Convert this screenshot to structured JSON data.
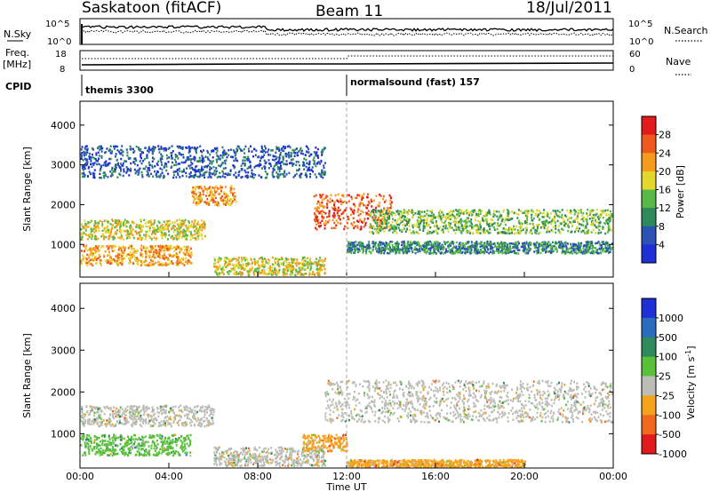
{
  "header": {
    "station": "Saskatoon (fitACF)",
    "beam": "Beam 11",
    "date": "18/Jul/2011"
  },
  "summary": {
    "nsky_label": "N.Sky",
    "nsky_ticks": [
      "10^5",
      "10^0"
    ],
    "nsearch_label": "N.Search",
    "nsearch_ticks": [
      "10^5",
      "10^0"
    ],
    "freq_label": "Freq.",
    "freq_unit": "[MHz]",
    "freq_ticks": [
      "18",
      "8"
    ],
    "nave_label": "Nave",
    "nave_ticks": [
      "60",
      "0"
    ],
    "cpid_label": "CPID",
    "cpid_1": "themis 3300",
    "cpid_2": "normalsound (fast) 157"
  },
  "chart_data": [
    {
      "type": "heatmap",
      "name": "Power",
      "ylabel": "Slant Range [km]",
      "xlabel": "Time UT",
      "x_ticks": [
        "00:00",
        "04:00",
        "08:00",
        "12:00",
        "16:00",
        "20:00",
        "00:00"
      ],
      "xlim_hours": [
        0,
        24
      ],
      "y_ticks": [
        1000,
        2000,
        3000,
        4000
      ],
      "ylim": [
        180,
        4600
      ],
      "colorbar": {
        "label": "Power [dB]",
        "ticks": [
          "28",
          "24",
          "20",
          "16",
          "12",
          "8",
          "4"
        ],
        "colors": [
          "#1f2fd6",
          "#2a52b5",
          "#2e8a5c",
          "#58b848",
          "#e4d62c",
          "#f59a1c",
          "#ef5a1c",
          "#e31a1c"
        ]
      },
      "echo_regions": [
        {
          "t": [
            0.0,
            5.6
          ],
          "range": [
            1150,
            1650
          ],
          "level": 4
        },
        {
          "t": [
            0.0,
            5.0
          ],
          "range": [
            500,
            1000
          ],
          "level": 5
        },
        {
          "t": [
            5.0,
            7.0
          ],
          "range": [
            2000,
            2500
          ],
          "level": 5
        },
        {
          "t": [
            6.0,
            11.0
          ],
          "range": [
            250,
            700
          ],
          "level": 4
        },
        {
          "t": [
            10.5,
            14.0
          ],
          "range": [
            1400,
            2300
          ],
          "level": 6
        },
        {
          "t": [
            13.0,
            24.0
          ],
          "range": [
            1300,
            1900
          ],
          "level": 3
        },
        {
          "t": [
            12.0,
            24.0
          ],
          "range": [
            800,
            1100
          ],
          "level": 2
        },
        {
          "t": [
            0.0,
            11.0
          ],
          "range": [
            2700,
            3500
          ],
          "level": 1
        }
      ]
    },
    {
      "type": "heatmap",
      "name": "Velocity",
      "ylabel": "Slant Range [km]",
      "xlabel": "Time UT",
      "x_ticks": [
        "00:00",
        "04:00",
        "08:00",
        "12:00",
        "16:00",
        "20:00",
        "00:00"
      ],
      "xlim_hours": [
        0,
        24
      ],
      "y_ticks": [
        1000,
        2000,
        3000,
        4000
      ],
      "ylim": [
        180,
        4600
      ],
      "colorbar": {
        "label": "Velocity [m s^-1]",
        "ticks": [
          "1000",
          "500",
          "100",
          "25",
          "-25",
          "-100",
          "-500",
          "-1000"
        ],
        "colors": [
          "#1f2fd6",
          "#2a6dbf",
          "#2e8a5c",
          "#58c03a",
          "#bdbdb7",
          "#f5a31c",
          "#ef6a1c",
          "#e31a1c"
        ]
      },
      "echo_regions": [
        {
          "t": [
            0.0,
            6.0
          ],
          "range": [
            1200,
            1700
          ],
          "vel": "ground"
        },
        {
          "t": [
            0.0,
            5.0
          ],
          "range": [
            500,
            1000
          ],
          "vel": "100"
        },
        {
          "t": [
            6.0,
            11.0
          ],
          "range": [
            250,
            700
          ],
          "vel": "ground"
        },
        {
          "t": [
            11.0,
            24.0
          ],
          "range": [
            1300,
            2300
          ],
          "vel": "ground"
        },
        {
          "t": [
            10.0,
            12.0
          ],
          "range": [
            600,
            1000
          ],
          "vel": "-100"
        },
        {
          "t": [
            12.0,
            20.0
          ],
          "range": [
            200,
            400
          ],
          "vel": "-100"
        }
      ]
    }
  ]
}
